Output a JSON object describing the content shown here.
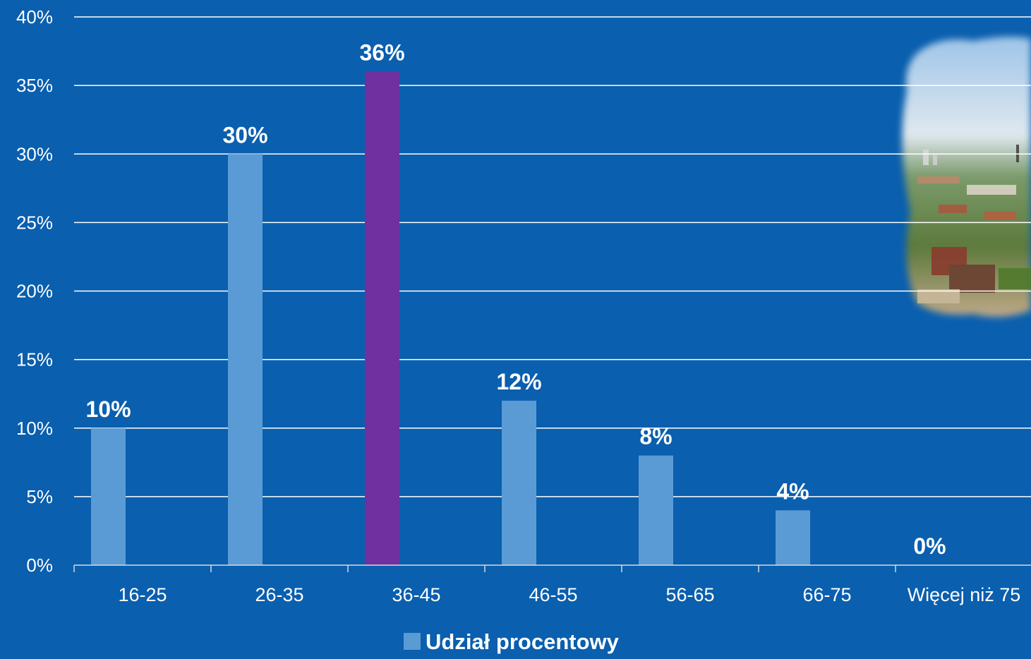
{
  "chart_data": {
    "type": "bar",
    "categories": [
      "16-25",
      "26-35",
      "36-45",
      "46-55",
      "56-65",
      "66-75",
      "Więcej niż 75"
    ],
    "series": [
      {
        "name": "Udział procentowy",
        "values": [
          10,
          30,
          36,
          12,
          8,
          4,
          0
        ]
      }
    ],
    "data_labels": [
      "10%",
      "30%",
      "36%",
      "12%",
      "8%",
      "4%",
      "0%"
    ],
    "highlight_index": 2,
    "ylim": [
      0,
      40
    ],
    "y_ticks": [
      0,
      5,
      10,
      15,
      20,
      25,
      30,
      35,
      40
    ],
    "y_tick_labels": [
      "0%",
      "5%",
      "10%",
      "15%",
      "20%",
      "25%",
      "30%",
      "35%",
      "40%"
    ],
    "title": "",
    "xlabel": "",
    "ylabel": "",
    "grid": true,
    "legend_position": "bottom-center",
    "colors": {
      "background": "#0a5fae",
      "bar": "#5b9bd5",
      "highlight": "#7030a0",
      "gridline": "#ffffff",
      "text": "#ffffff"
    },
    "decoration": "aerial city photo (top-right)"
  }
}
